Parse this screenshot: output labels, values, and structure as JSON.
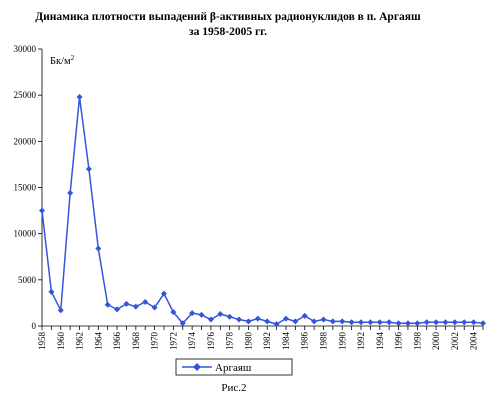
{
  "chart_data": {
    "type": "line",
    "title_line1": "Динамика плотности выпадений β-активных радионуклидов в п. Аргаяш",
    "title_line2": "за 1958-2005 гг.",
    "unit_label": "Бк/м",
    "unit_superscript": "2",
    "ylim": [
      0,
      30000
    ],
    "y_ticks": [
      "0",
      "5000",
      "10000",
      "15000",
      "20000",
      "25000",
      "30000"
    ],
    "x_tick_labels": [
      "1958",
      "1960",
      "1962",
      "1964",
      "1966",
      "1968",
      "1970",
      "1972",
      "1974",
      "1976",
      "1978",
      "1980",
      "1982",
      "1984",
      "1986",
      "1988",
      "1990",
      "1992",
      "1994",
      "1996",
      "1998",
      "2000",
      "2002",
      "2004"
    ],
    "grid": false,
    "legend_position": "bottom",
    "caption": "Рис.2",
    "series": [
      {
        "name": "Аргаяш",
        "color": "#3355dd",
        "x": [
          1958,
          1959,
          1960,
          1961,
          1962,
          1963,
          1964,
          1965,
          1966,
          1967,
          1968,
          1969,
          1970,
          1971,
          1972,
          1973,
          1974,
          1975,
          1976,
          1977,
          1978,
          1979,
          1980,
          1981,
          1982,
          1983,
          1984,
          1985,
          1986,
          1987,
          1988,
          1989,
          1990,
          1991,
          1992,
          1993,
          1994,
          1995,
          1996,
          1997,
          1998,
          1999,
          2000,
          2001,
          2002,
          2003,
          2004,
          2005
        ],
        "values": [
          12500,
          3700,
          1700,
          14400,
          24800,
          17000,
          8400,
          2300,
          1800,
          2400,
          2100,
          2600,
          2000,
          3500,
          1500,
          300,
          1400,
          1200,
          700,
          1300,
          1000,
          700,
          500,
          800,
          500,
          200,
          800,
          500,
          1100,
          500,
          700,
          500,
          500,
          400,
          400,
          400,
          400,
          400,
          300,
          300,
          300,
          400,
          400,
          400,
          400,
          400,
          400,
          300
        ]
      }
    ]
  }
}
